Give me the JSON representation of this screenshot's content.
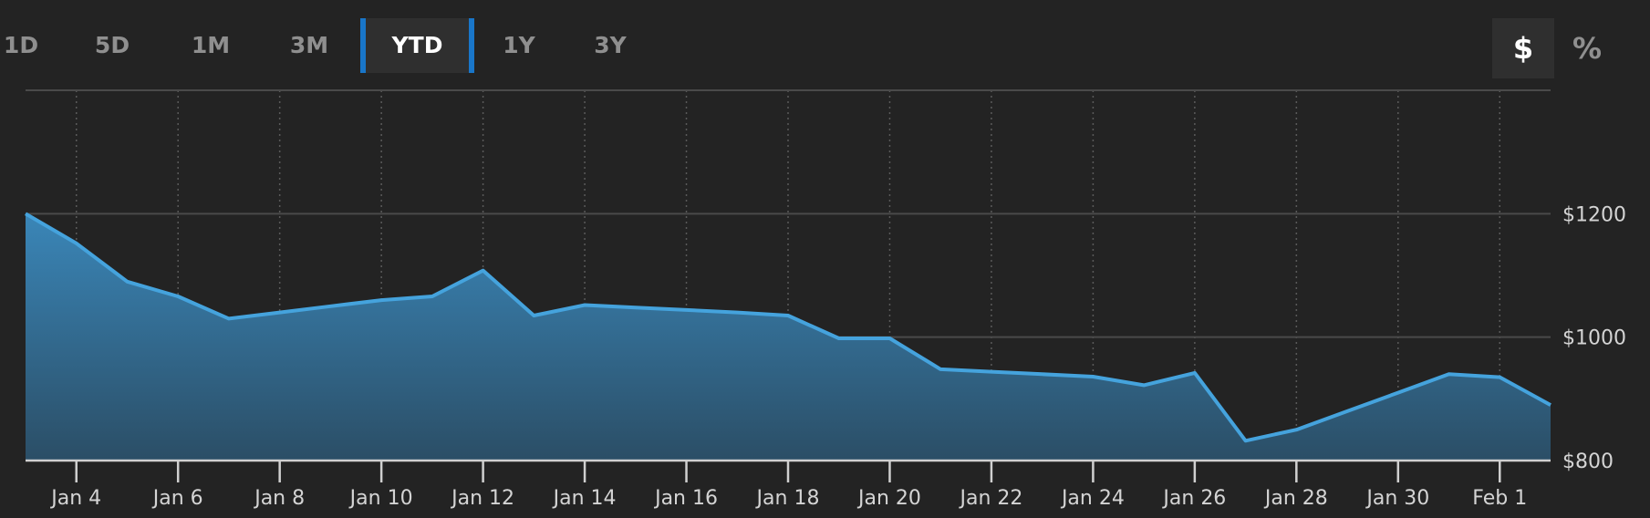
{
  "range_tabs": [
    {
      "label": "1D",
      "active": false
    },
    {
      "label": "5D",
      "active": false
    },
    {
      "label": "1M",
      "active": false
    },
    {
      "label": "3M",
      "active": false
    },
    {
      "label": "YTD",
      "active": true
    },
    {
      "label": "1Y",
      "active": false
    },
    {
      "label": "3Y",
      "active": false
    }
  ],
  "unit_toggle": [
    {
      "label": "$",
      "active": true
    },
    {
      "label": "%",
      "active": false
    }
  ],
  "colors": {
    "background": "#232323",
    "line": "#45a3dd",
    "area_top": "#3a86b8",
    "area_bottom": "#2b4e66",
    "grid": "#4a4a4a",
    "accent": "#1976c9"
  },
  "chart_data": {
    "type": "area",
    "title": "",
    "xlabel": "",
    "ylabel": "",
    "x": [
      "Jan 3",
      "Jan 4",
      "Jan 5",
      "Jan 6",
      "Jan 7",
      "Jan 8",
      "Jan 9",
      "Jan 10",
      "Jan 11",
      "Jan 12",
      "Jan 13",
      "Jan 14",
      "Jan 15",
      "Jan 16",
      "Jan 17",
      "Jan 18",
      "Jan 19",
      "Jan 20",
      "Jan 21",
      "Jan 22",
      "Jan 23",
      "Jan 24",
      "Jan 25",
      "Jan 26",
      "Jan 27",
      "Jan 28",
      "Jan 29",
      "Jan 30",
      "Jan 31",
      "Feb 1",
      "Feb 2"
    ],
    "values": [
      1200,
      1152,
      1090,
      1066,
      1030,
      1040,
      1050,
      1060,
      1066,
      1108,
      1035,
      1052,
      1048,
      1044,
      1040,
      1035,
      998,
      998,
      948,
      944,
      940,
      936,
      922,
      942,
      832,
      850,
      880,
      910,
      940,
      935,
      890
    ],
    "x_tick_labels": [
      "Jan 4",
      "Jan 6",
      "Jan 8",
      "Jan 10",
      "Jan 12",
      "Jan 14",
      "Jan 16",
      "Jan 18",
      "Jan 20",
      "Jan 22",
      "Jan 24",
      "Jan 26",
      "Jan 28",
      "Jan 30",
      "Feb 1"
    ],
    "y_ticks": [
      800,
      1000,
      1200
    ],
    "y_tick_labels": [
      "$800",
      "$1000",
      "$1200"
    ],
    "ylim": [
      800,
      1400
    ],
    "grid": true,
    "legend": "none"
  }
}
